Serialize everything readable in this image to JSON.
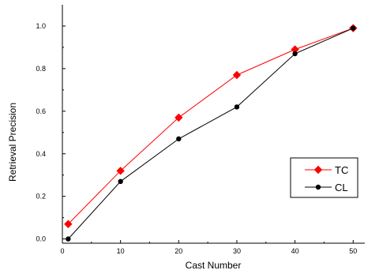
{
  "chart_data": {
    "type": "line",
    "title": "",
    "xlabel": "Cast Number",
    "ylabel": "Retrieval Precision",
    "xlim": [
      0,
      52
    ],
    "ylim": [
      -0.02,
      1.1
    ],
    "x_ticks": [
      0,
      10,
      20,
      30,
      40,
      50
    ],
    "y_ticks": [
      0.0,
      0.2,
      0.4,
      0.6,
      0.8,
      1.0
    ],
    "x_tick_labels": [
      "0",
      "10",
      "20",
      "30",
      "40",
      "50"
    ],
    "y_tick_labels": [
      "0.0",
      "0.2",
      "0.4",
      "0.6",
      "0.8",
      "1.0"
    ],
    "grid": false,
    "legend_position": "lower-right",
    "series": [
      {
        "name": "TC",
        "color": "#ff0000",
        "marker": "diamond",
        "x": [
          1,
          10,
          20,
          30,
          40,
          50
        ],
        "y": [
          0.07,
          0.32,
          0.57,
          0.77,
          0.89,
          0.99
        ]
      },
      {
        "name": "CL",
        "color": "#000000",
        "marker": "circle",
        "x": [
          1,
          10,
          20,
          30,
          40,
          50
        ],
        "y": [
          0.0,
          0.27,
          0.47,
          0.62,
          0.87,
          0.99
        ]
      }
    ]
  }
}
